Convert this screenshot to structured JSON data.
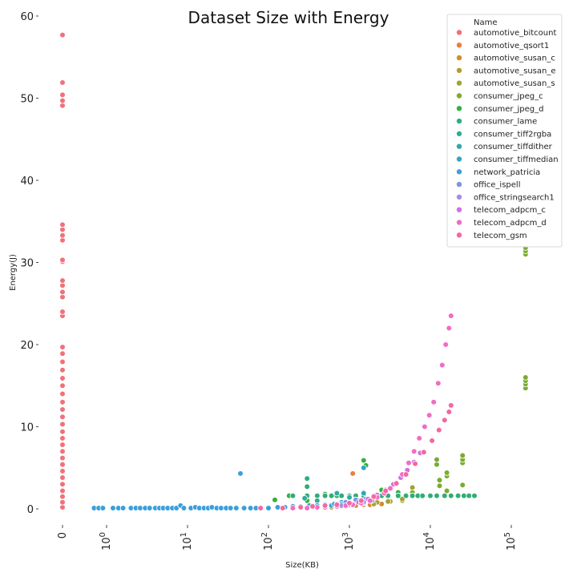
{
  "chart_data": {
    "type": "scatter",
    "title": "Dataset Size with Energy",
    "xlabel": "Size(KB)",
    "ylabel": "Energy(J)",
    "x_scale": "symlog",
    "x_ticks": [
      {
        "value": 0,
        "label": "0"
      },
      {
        "value": 1,
        "label": "10^0"
      },
      {
        "value": 10,
        "label": "10^1"
      },
      {
        "value": 100,
        "label": "10^2"
      },
      {
        "value": 1000,
        "label": "10^3"
      },
      {
        "value": 10000,
        "label": "10^4"
      },
      {
        "value": 100000,
        "label": "10^5"
      }
    ],
    "y_ticks": [
      0,
      10,
      20,
      30,
      40,
      50,
      60
    ],
    "ylim": [
      -2,
      60
    ],
    "grid": false,
    "legend": {
      "title": "Name",
      "placement": "top-right"
    },
    "series": [
      {
        "name": "automotive_bitcount",
        "color": "#f0717a",
        "points": [
          [
            0,
            0.2
          ],
          [
            0,
            0.8
          ],
          [
            0,
            1.5
          ],
          [
            0,
            2.2
          ],
          [
            0,
            3
          ],
          [
            0,
            3.8
          ],
          [
            0,
            4.6
          ],
          [
            0,
            5.4
          ],
          [
            0,
            6.2
          ],
          [
            0,
            7
          ],
          [
            0,
            7.8
          ],
          [
            0,
            8.6
          ],
          [
            0,
            9.4
          ],
          [
            0,
            10.3
          ],
          [
            0,
            11.2
          ],
          [
            0,
            12.1
          ],
          [
            0,
            13
          ],
          [
            0,
            14
          ],
          [
            0,
            15
          ],
          [
            0,
            15.9
          ],
          [
            0,
            16.9
          ],
          [
            0,
            17.9
          ],
          [
            0,
            18.9
          ],
          [
            0,
            19.7
          ],
          [
            0,
            23.5
          ],
          [
            0,
            24
          ],
          [
            0,
            25.8
          ],
          [
            0,
            26.4
          ],
          [
            0,
            27.2
          ],
          [
            0,
            27.8
          ],
          [
            0,
            30.1
          ],
          [
            0,
            30.3
          ],
          [
            0,
            32.7
          ],
          [
            0,
            33.3
          ],
          [
            0,
            34
          ],
          [
            0,
            34.6
          ],
          [
            0,
            49.1
          ],
          [
            0,
            49.7
          ],
          [
            0,
            50.4
          ],
          [
            0,
            51.9
          ],
          [
            0,
            57.7
          ]
        ]
      },
      {
        "name": "automotive_qsort1",
        "color": "#f07c3a",
        "points": [
          [
            1100,
            4.3
          ],
          [
            800,
            0.3
          ],
          [
            1500,
            0.5
          ],
          [
            2000,
            0.5
          ]
        ]
      },
      {
        "name": "automotive_susan_c",
        "color": "#d08c30",
        "points": [
          [
            600,
            0.2
          ],
          [
            900,
            0.3
          ],
          [
            1200,
            0.4
          ],
          [
            1800,
            0.5
          ],
          [
            2500,
            0.6
          ]
        ]
      },
      {
        "name": "automotive_susan_e",
        "color": "#b59a2f",
        "points": [
          [
            1000,
            0.5
          ],
          [
            1500,
            0.7
          ],
          [
            2200,
            0.8
          ],
          [
            3200,
            0.9
          ],
          [
            4500,
            1.0
          ]
        ]
      },
      {
        "name": "automotive_susan_s",
        "color": "#9fa52f",
        "points": [
          [
            2000,
            0.6
          ],
          [
            3000,
            0.9
          ],
          [
            4500,
            1.2
          ],
          [
            6000,
            1.8
          ],
          [
            6000,
            2.6
          ],
          [
            8000,
            1.5
          ]
        ]
      },
      {
        "name": "consumer_jpeg_c",
        "color": "#7bab31",
        "points": [
          [
            13000,
            2.8
          ],
          [
            13000,
            3.5
          ],
          [
            16000,
            4.0
          ],
          [
            16000,
            4.4
          ],
          [
            12000,
            5.4
          ],
          [
            12000,
            6.0
          ],
          [
            25000,
            2.9
          ],
          [
            25000,
            5.6
          ],
          [
            25000,
            6.0
          ],
          [
            25000,
            6.5
          ],
          [
            150000,
            14.7
          ],
          [
            150000,
            15.2
          ],
          [
            150000,
            15.6
          ],
          [
            150000,
            16.0
          ],
          [
            150000,
            31.0
          ],
          [
            150000,
            31.4
          ],
          [
            150000,
            31.8
          ],
          [
            6000,
            2.0
          ],
          [
            16000,
            2.2
          ]
        ]
      },
      {
        "name": "consumer_jpeg_d",
        "color": "#33b040",
        "points": [
          [
            1500,
            5.9
          ],
          [
            1600,
            5.3
          ],
          [
            180,
            1.6
          ],
          [
            120,
            1.1
          ],
          [
            300,
            1.0
          ],
          [
            2500,
            2.3
          ],
          [
            4000,
            2.0
          ],
          [
            500,
            1.8
          ]
        ]
      },
      {
        "name": "consumer_lame",
        "color": "#30ad78",
        "points": [
          [
            300,
            1.6
          ],
          [
            400,
            1.6
          ],
          [
            500,
            1.6
          ],
          [
            600,
            1.6
          ],
          [
            700,
            1.6
          ],
          [
            800,
            1.6
          ],
          [
            1000,
            1.6
          ],
          [
            1200,
            1.6
          ],
          [
            1500,
            1.6
          ],
          [
            2000,
            1.6
          ],
          [
            2500,
            1.6
          ],
          [
            3000,
            1.6
          ],
          [
            4000,
            1.6
          ],
          [
            5000,
            1.6
          ],
          [
            6000,
            1.6
          ],
          [
            7000,
            1.6
          ],
          [
            8000,
            1.6
          ],
          [
            10000,
            1.6
          ],
          [
            12000,
            1.6
          ],
          [
            15000,
            1.6
          ],
          [
            18000,
            1.6
          ],
          [
            22000,
            1.6
          ],
          [
            26000,
            1.6
          ],
          [
            30000,
            1.6
          ],
          [
            35000,
            1.6
          ],
          [
            300,
            2.7
          ],
          [
            300,
            3.7
          ],
          [
            200,
            1.6
          ]
        ]
      },
      {
        "name": "consumer_tiff2rgba",
        "color": "#32ab9a",
        "points": [
          [
            280,
            1.3
          ],
          [
            400,
            1.0
          ],
          [
            700,
            1.9
          ],
          [
            1000,
            1.4
          ],
          [
            1500,
            2.0
          ]
        ]
      },
      {
        "name": "consumer_tiffdither",
        "color": "#34a7ad",
        "points": [
          [
            500,
            0.6
          ],
          [
            800,
            0.8
          ],
          [
            1200,
            1.0
          ],
          [
            1500,
            1.9
          ]
        ]
      },
      {
        "name": "consumer_tiffmedian",
        "color": "#36a3c4",
        "points": [
          [
            600,
            0.4
          ],
          [
            900,
            0.7
          ],
          [
            1300,
            1.0
          ],
          [
            1500,
            5.0
          ]
        ]
      },
      {
        "name": "network_patricia",
        "color": "#3a9fdc",
        "points": [
          [
            0.7,
            0.1
          ],
          [
            0.8,
            0.1
          ],
          [
            0.9,
            0.1
          ],
          [
            1.2,
            0.1
          ],
          [
            1.4,
            0.1
          ],
          [
            1.6,
            0.1
          ],
          [
            2,
            0.1
          ],
          [
            2.3,
            0.1
          ],
          [
            2.6,
            0.1
          ],
          [
            3,
            0.1
          ],
          [
            3.4,
            0.1
          ],
          [
            4,
            0.1
          ],
          [
            4.5,
            0.1
          ],
          [
            5,
            0.1
          ],
          [
            5.7,
            0.1
          ],
          [
            6.5,
            0.1
          ],
          [
            7.3,
            0.1
          ],
          [
            8.2,
            0.4
          ],
          [
            9,
            0.1
          ],
          [
            11,
            0.1
          ],
          [
            12.5,
            0.2
          ],
          [
            14,
            0.1
          ],
          [
            16,
            0.1
          ],
          [
            18,
            0.1
          ],
          [
            20,
            0.2
          ],
          [
            23,
            0.1
          ],
          [
            26,
            0.1
          ],
          [
            30,
            0.1
          ],
          [
            34,
            0.1
          ],
          [
            40,
            0.1
          ],
          [
            45,
            4.3
          ],
          [
            50,
            0.1
          ],
          [
            60,
            0.1
          ],
          [
            70,
            0.1
          ],
          [
            80,
            0.1
          ],
          [
            100,
            0.1
          ],
          [
            130,
            0.2
          ],
          [
            160,
            0.2
          ],
          [
            200,
            0.3
          ],
          [
            250,
            0.3
          ],
          [
            320,
            0.4
          ],
          [
            400,
            0.4
          ],
          [
            500,
            0.5
          ],
          [
            650,
            0.6
          ],
          [
            800,
            0.6
          ]
        ]
      },
      {
        "name": "office_ispell",
        "color": "#7d93e8",
        "points": [
          [
            700,
            0.6
          ],
          [
            900,
            0.8
          ],
          [
            1200,
            1.1
          ],
          [
            1600,
            1.2
          ]
        ]
      },
      {
        "name": "office_stringsearch1",
        "color": "#a78ae8",
        "points": [
          [
            800,
            0.4
          ],
          [
            1100,
            0.6
          ],
          [
            1500,
            0.8
          ],
          [
            1900,
            1.0
          ]
        ]
      },
      {
        "name": "telecom_adpcm_c",
        "color": "#cf71e7",
        "points": [
          [
            1000,
            0.5
          ],
          [
            1300,
            0.8
          ],
          [
            1700,
            1.2
          ],
          [
            2200,
            1.7
          ],
          [
            2800,
            2.3
          ],
          [
            3500,
            3.0
          ],
          [
            4300,
            3.8
          ],
          [
            5200,
            4.7
          ],
          [
            6300,
            5.7
          ],
          [
            7500,
            6.8
          ]
        ]
      },
      {
        "name": "telecom_adpcm_d",
        "color": "#f26bc6",
        "points": [
          [
            150,
            0.1
          ],
          [
            200,
            0.1
          ],
          [
            300,
            0.1
          ],
          [
            400,
            0.2
          ],
          [
            500,
            0.2
          ],
          [
            700,
            0.3
          ],
          [
            900,
            0.4
          ],
          [
            1100,
            0.5
          ],
          [
            1400,
            0.7
          ],
          [
            1800,
            1.0
          ],
          [
            2200,
            1.4
          ],
          [
            2700,
            1.9
          ],
          [
            3200,
            2.5
          ],
          [
            3800,
            3.2
          ],
          [
            4500,
            4.2
          ],
          [
            5400,
            5.6
          ],
          [
            6300,
            7.0
          ],
          [
            7300,
            8.6
          ],
          [
            8500,
            10.0
          ],
          [
            9700,
            11.4
          ],
          [
            11000,
            13.0
          ],
          [
            12500,
            15.3
          ],
          [
            14000,
            17.5
          ],
          [
            15500,
            20.0
          ],
          [
            17000,
            22.0
          ],
          [
            18000,
            23.5
          ]
        ]
      },
      {
        "name": "telecom_gsm",
        "color": "#f2699e",
        "points": [
          [
            80,
            0.1
          ],
          [
            150,
            0.1
          ],
          [
            250,
            0.2
          ],
          [
            350,
            0.3
          ],
          [
            500,
            0.4
          ],
          [
            700,
            0.5
          ],
          [
            1000,
            0.7
          ],
          [
            1400,
            1.0
          ],
          [
            2000,
            1.5
          ],
          [
            2800,
            2.2
          ],
          [
            3800,
            3.1
          ],
          [
            5000,
            4.2
          ],
          [
            6500,
            5.5
          ],
          [
            8300,
            6.9
          ],
          [
            10500,
            8.3
          ],
          [
            12800,
            9.6
          ],
          [
            15000,
            10.8
          ],
          [
            17000,
            11.8
          ],
          [
            18000,
            12.6
          ]
        ]
      }
    ]
  }
}
